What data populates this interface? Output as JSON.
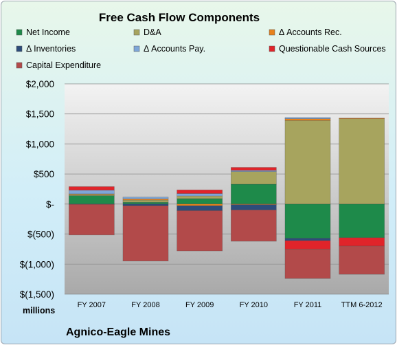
{
  "chart_data": {
    "type": "bar",
    "stacked": true,
    "title": "Free Cash Flow Components",
    "unit_label": "millions",
    "company": "Agnico-Eagle Mines",
    "categories": [
      "FY 2007",
      "FY 2008",
      "FY 2009",
      "FY 2010",
      "FY 2011",
      "TTM 6-2012"
    ],
    "ylim": [
      -1500,
      2000
    ],
    "yticks": [
      {
        "value": 2000,
        "label": "$2,000"
      },
      {
        "value": 1500,
        "label": "$1,500"
      },
      {
        "value": 1000,
        "label": "$1,000"
      },
      {
        "value": 500,
        "label": "$500"
      },
      {
        "value": 0,
        "label": "$-"
      },
      {
        "value": -500,
        "label": "$(500)"
      },
      {
        "value": -1000,
        "label": "$(1,000)"
      },
      {
        "value": -1500,
        "label": "$(1,500)"
      }
    ],
    "grid": true,
    "legend_position": "top",
    "series": [
      {
        "name": "Net Income",
        "color": "#1e8a4a",
        "values": [
          140,
          30,
          90,
          330,
          -570,
          -560
        ]
      },
      {
        "name": "D&A",
        "color": "#a7a45e",
        "values": [
          20,
          35,
          45,
          210,
          1390,
          1420
        ]
      },
      {
        "name": "Δ Accounts Rec.",
        "color": "#e8821c",
        "values": [
          10,
          20,
          -30,
          -10,
          30,
          10
        ]
      },
      {
        "name": "Δ Inventories",
        "color": "#2d4c7a",
        "values": [
          -5,
          -30,
          -80,
          -90,
          -40,
          0
        ]
      },
      {
        "name": "Δ Accounts Pay.",
        "color": "#7ea6d8",
        "values": [
          60,
          30,
          40,
          20,
          20,
          0
        ]
      },
      {
        "name": "Questionable Cash Sources",
        "color": "#e0242a",
        "values": [
          60,
          0,
          60,
          50,
          -140,
          -140
        ]
      },
      {
        "name": "Capital Expenditure",
        "color": "#b24a4a",
        "values": [
          -510,
          -920,
          -670,
          -520,
          -490,
          -470
        ]
      }
    ]
  }
}
